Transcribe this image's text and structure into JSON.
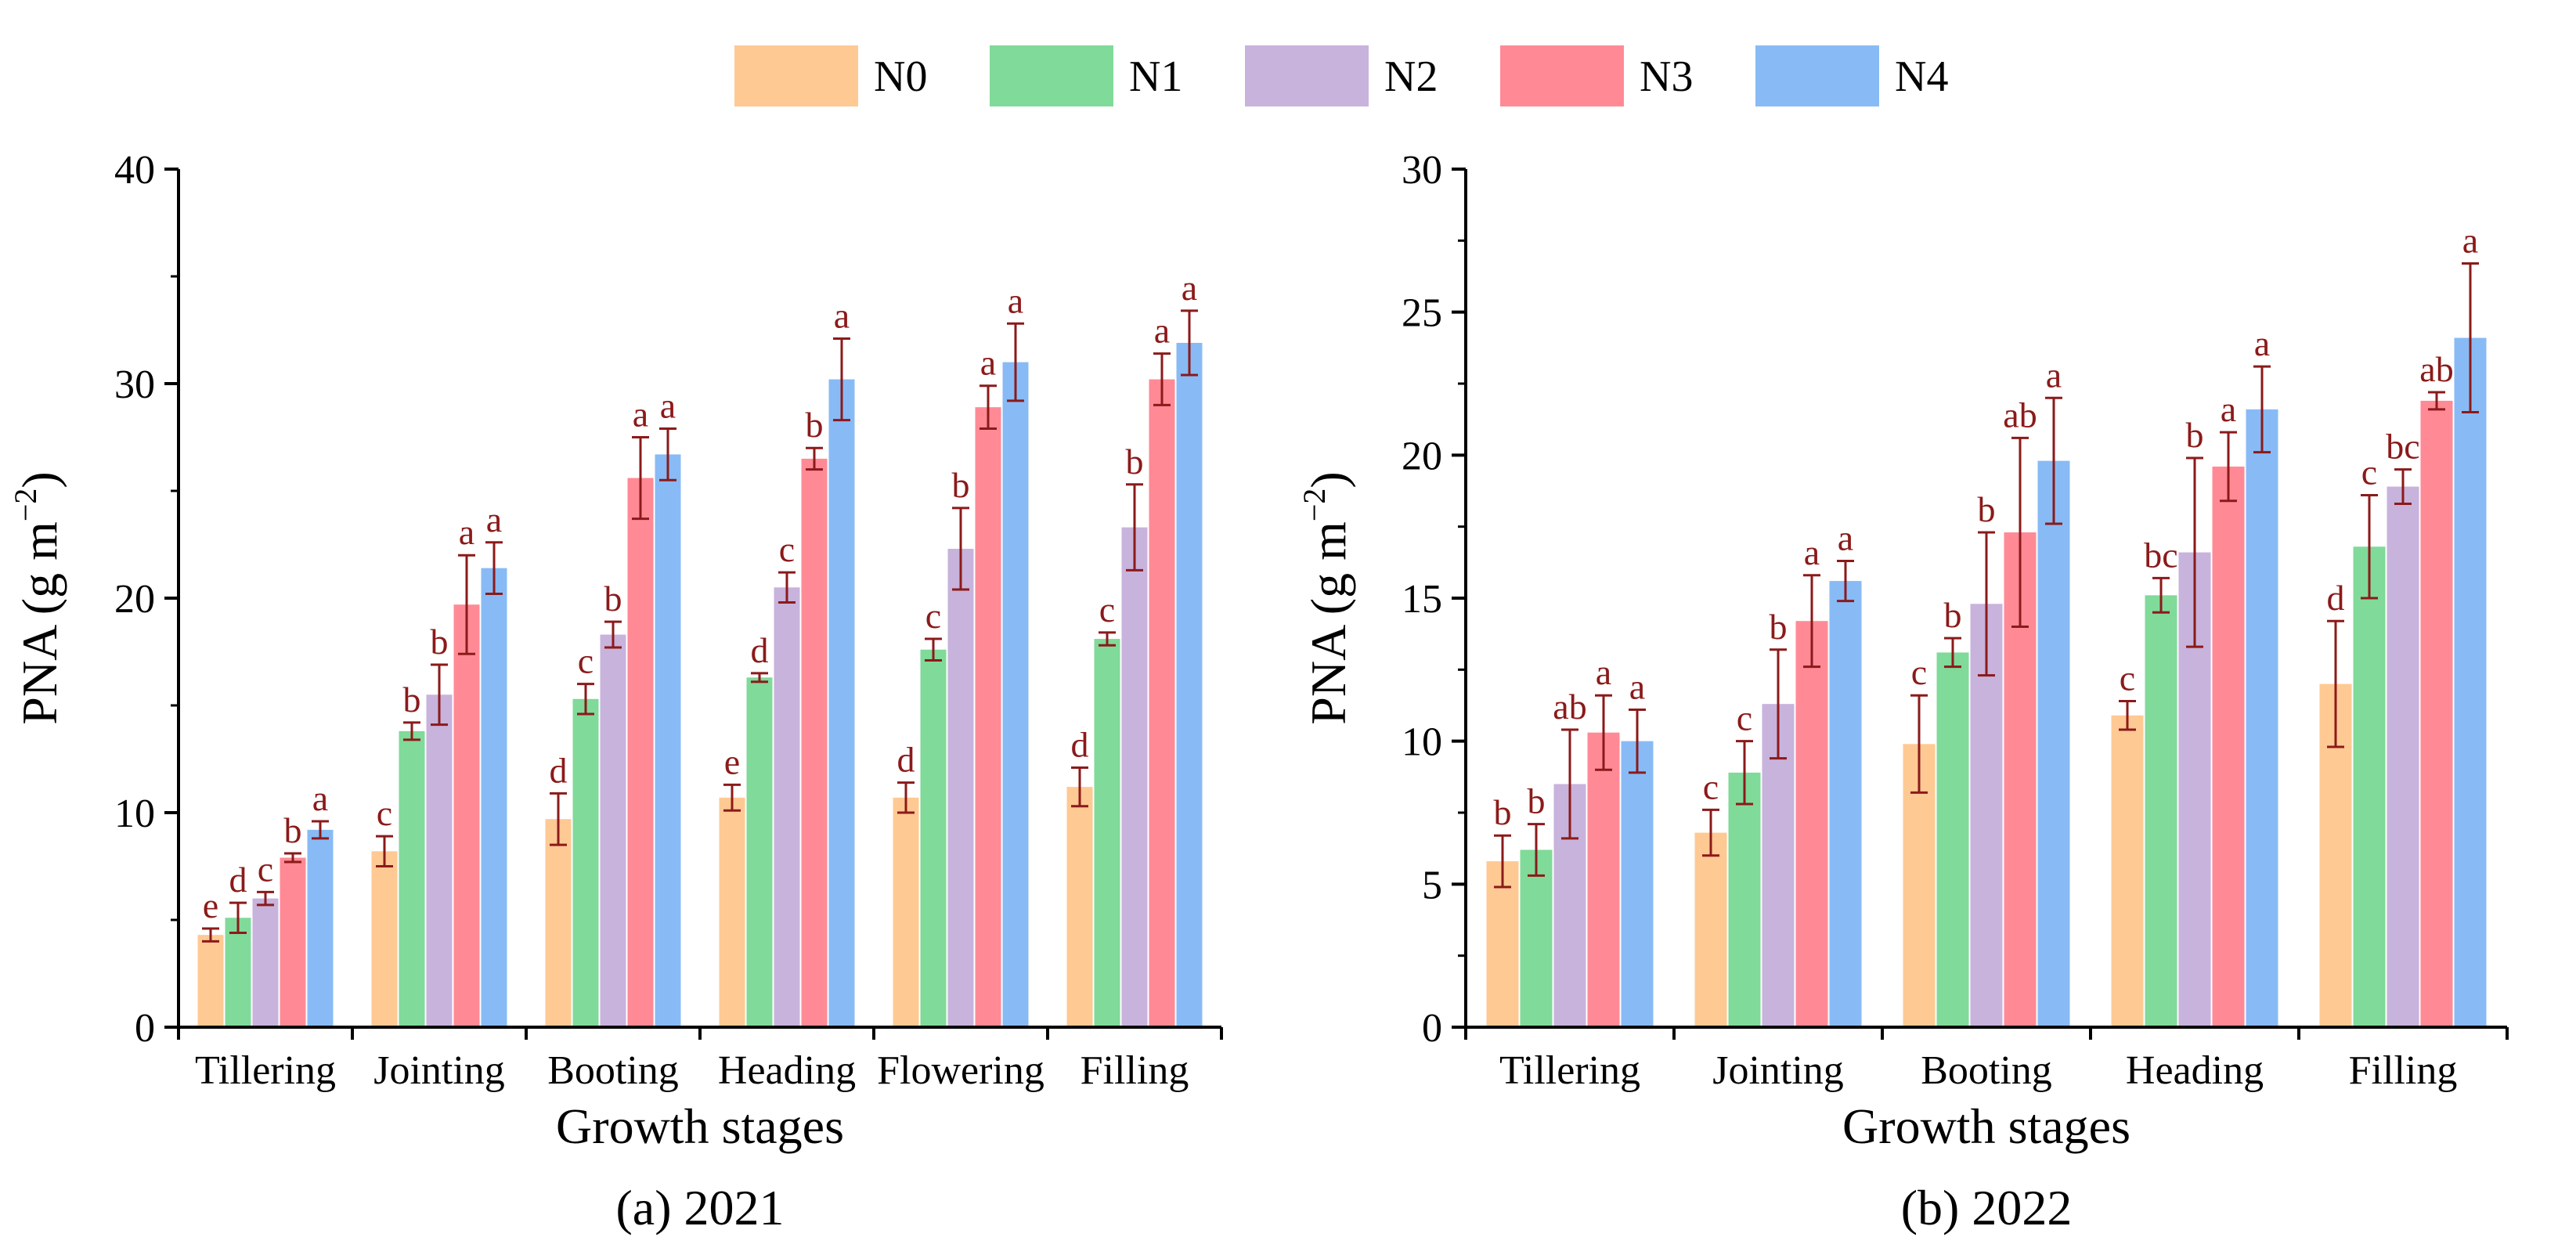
{
  "chart_data": [
    {
      "type": "bar",
      "caption": "(a) 2021",
      "xlabel": "Growth stages",
      "ylabel_main": "PNA (g m",
      "ylabel_sup": "−2",
      "ylabel_close": ")",
      "ylim": [
        0,
        40
      ],
      "yticks": [
        "0",
        "10",
        "20",
        "30",
        "40"
      ],
      "minor_step": 5,
      "grid": false,
      "categories": [
        "Tillering",
        "Jointing",
        "Booting",
        "Heading",
        "Flowering",
        "Filling"
      ],
      "series": [
        {
          "name": "N0",
          "values": [
            4.3,
            8.2,
            9.7,
            10.7,
            10.7,
            11.2
          ],
          "errors": [
            0.3,
            0.7,
            1.2,
            0.6,
            0.7,
            0.9
          ],
          "letters": [
            "e",
            "c",
            "d",
            "e",
            "d",
            "d"
          ]
        },
        {
          "name": "N1",
          "values": [
            5.1,
            13.8,
            15.3,
            16.3,
            17.6,
            18.1
          ],
          "errors": [
            0.7,
            0.4,
            0.7,
            0.2,
            0.5,
            0.3
          ],
          "letters": [
            "d",
            "b",
            "c",
            "d",
            "c",
            "c"
          ]
        },
        {
          "name": "N2",
          "values": [
            6.0,
            15.5,
            18.3,
            20.5,
            22.3,
            23.3
          ],
          "errors": [
            0.3,
            1.4,
            0.6,
            0.7,
            1.9,
            2.0
          ],
          "letters": [
            "c",
            "b",
            "b",
            "c",
            "b",
            "b"
          ]
        },
        {
          "name": "N3",
          "values": [
            7.9,
            19.7,
            25.6,
            26.5,
            28.9,
            30.2
          ],
          "errors": [
            0.2,
            2.3,
            1.9,
            0.5,
            1.0,
            1.2
          ],
          "letters": [
            "b",
            "a",
            "a",
            "b",
            "a",
            "a"
          ]
        },
        {
          "name": "N4",
          "values": [
            9.2,
            21.4,
            26.7,
            30.2,
            31.0,
            31.9
          ],
          "errors": [
            0.4,
            1.2,
            1.2,
            1.9,
            1.8,
            1.5
          ],
          "letters": [
            "a",
            "a",
            "a",
            "a",
            "a",
            "a"
          ]
        }
      ]
    },
    {
      "type": "bar",
      "caption": "(b) 2022",
      "xlabel": "Growth stages",
      "ylabel_main": "PNA (g m",
      "ylabel_sup": "−2",
      "ylabel_close": ")",
      "ylim": [
        0,
        30
      ],
      "yticks": [
        "0",
        "5",
        "10",
        "15",
        "20",
        "25",
        "30"
      ],
      "minor_step": 2.5,
      "grid": false,
      "categories": [
        "Tillering",
        "Jointing",
        "Booting",
        "Heading",
        "Filling"
      ],
      "series": [
        {
          "name": "N0",
          "values": [
            5.8,
            6.8,
            9.9,
            10.9,
            12.0
          ],
          "errors": [
            0.9,
            0.8,
            1.7,
            0.5,
            2.2
          ],
          "letters": [
            "b",
            "c",
            "c",
            "c",
            "d"
          ]
        },
        {
          "name": "N1",
          "values": [
            6.2,
            8.9,
            13.1,
            15.1,
            16.8
          ],
          "errors": [
            0.9,
            1.1,
            0.5,
            0.6,
            1.8
          ],
          "letters": [
            "b",
            "c",
            "b",
            "bc",
            "c"
          ]
        },
        {
          "name": "N2",
          "values": [
            8.5,
            11.3,
            14.8,
            16.6,
            18.9
          ],
          "errors": [
            1.9,
            1.9,
            2.5,
            3.3,
            0.6
          ],
          "letters": [
            "ab",
            "b",
            "b",
            "b",
            "bc"
          ]
        },
        {
          "name": "N3",
          "values": [
            10.3,
            14.2,
            17.3,
            19.6,
            21.9
          ],
          "errors": [
            1.3,
            1.6,
            3.3,
            1.2,
            0.3
          ],
          "letters": [
            "a",
            "a",
            "ab",
            "a",
            "ab"
          ]
        },
        {
          "name": "N4",
          "values": [
            10.0,
            15.6,
            19.8,
            21.6,
            24.1
          ],
          "errors": [
            1.1,
            0.7,
            2.2,
            1.5,
            2.6
          ],
          "letters": [
            "a",
            "a",
            "a",
            "a",
            "a"
          ]
        }
      ]
    }
  ],
  "legend": {
    "position": "top-center",
    "items": [
      {
        "name": "N0",
        "color": "#FFC993"
      },
      {
        "name": "N1",
        "color": "#80DA99"
      },
      {
        "name": "N2",
        "color": "#C8B3DC"
      },
      {
        "name": "N3",
        "color": "#FF8A96"
      },
      {
        "name": "N4",
        "color": "#88BBF5"
      }
    ]
  },
  "error_bar_color": "#8b1a1a",
  "letter_color": "#8b1a1a"
}
